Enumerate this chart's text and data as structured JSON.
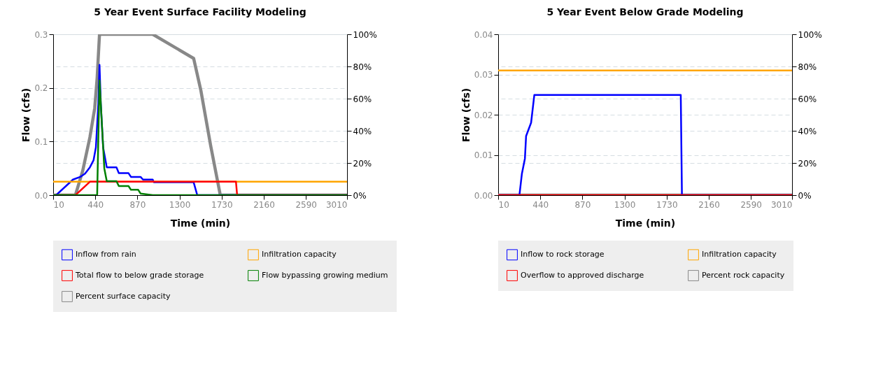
{
  "chart_data": [
    {
      "type": "line",
      "title": "5 Year Event Surface Facility Modeling",
      "xlabel": "Time (min)",
      "ylabel": "Flow (cfs)",
      "xlim": [
        10,
        3010
      ],
      "xticks": [
        10,
        440,
        870,
        1300,
        1730,
        2160,
        2590,
        3010
      ],
      "ylim": [
        0,
        0.3
      ],
      "yticks": [
        {
          "value": 0,
          "label": "0.0"
        },
        0.1,
        0.2,
        0.3
      ],
      "y2lim": [
        0,
        100
      ],
      "y2ticks": [
        {
          "value": 0,
          "label": "0%"
        },
        {
          "value": 20,
          "label": "20%"
        },
        {
          "value": 40,
          "label": "40%"
        },
        {
          "value": 60,
          "label": "60%"
        },
        {
          "value": 80,
          "label": "80%"
        },
        {
          "value": 100,
          "label": "100%"
        }
      ],
      "grid": true,
      "legend": "bottom",
      "series": [
        {
          "name": "Inflow from rain",
          "color": "#0000ff",
          "x": [
            10,
            40,
            212,
            286,
            335,
            385,
            422,
            446,
            471,
            483,
            496,
            520,
            557,
            656,
            680,
            779,
            804,
            902,
            927,
            1026,
            1038,
            1444,
            1481,
            3010
          ],
          "values": [
            0,
            0,
            0.029,
            0.034,
            0.04,
            0.052,
            0.065,
            0.089,
            0.171,
            0.243,
            0.171,
            0.089,
            0.052,
            0.052,
            0.041,
            0.041,
            0.034,
            0.034,
            0.029,
            0.029,
            0.024,
            0.024,
            0,
            0
          ]
        },
        {
          "name": "Infiltration capacity",
          "color": "#ffa500",
          "x": [
            10,
            3010
          ],
          "values": [
            0.025,
            0.025
          ]
        },
        {
          "name": "Total flow to below grade storage",
          "color": "#ff0000",
          "x": [
            10,
            237,
            385,
            1876,
            1888,
            3010
          ],
          "values": [
            0,
            0,
            0.025,
            0.025,
            0,
            0
          ]
        },
        {
          "name": "Flow bypassing growing medium",
          "color": "#008000",
          "x": [
            10,
            459,
            483,
            532,
            557,
            656,
            680,
            779,
            804,
            878,
            902,
            1026,
            3010
          ],
          "values": [
            0,
            0,
            0.214,
            0.05,
            0.026,
            0.026,
            0.017,
            0.017,
            0.01,
            0.01,
            0.003,
            0,
            0
          ]
        },
        {
          "name": "Percent surface capacity",
          "color": "#888888",
          "axis": "y2",
          "x": [
            10,
            237,
            311,
            385,
            434,
            459,
            483,
            1026,
            1444,
            1518,
            1617,
            1716,
            3010
          ],
          "values": [
            0,
            0,
            15,
            36,
            54,
            73,
            100,
            100,
            85,
            65,
            31,
            0,
            0
          ]
        }
      ]
    },
    {
      "type": "line",
      "title": "5 Year Event Below Grade Modeling",
      "xlabel": "Time (min)",
      "ylabel": "Flow (cfs)",
      "xlim": [
        10,
        3010
      ],
      "xticks": [
        10,
        440,
        870,
        1300,
        1730,
        2160,
        2590,
        3010
      ],
      "ylim": [
        0,
        0.04
      ],
      "yticks": [
        {
          "value": 0,
          "label": "0.00"
        },
        0.01,
        0.02,
        0.03,
        0.04
      ],
      "y2lim": [
        0,
        100
      ],
      "y2ticks": [
        {
          "value": 0,
          "label": "0%"
        },
        {
          "value": 20,
          "label": "20%"
        },
        {
          "value": 40,
          "label": "40%"
        },
        {
          "value": 60,
          "label": "60%"
        },
        {
          "value": 80,
          "label": "80%"
        },
        {
          "value": 100,
          "label": "100%"
        }
      ],
      "grid": true,
      "legend": "bottom",
      "series": [
        {
          "name": "Inflow to rock storage",
          "color": "#0000ff",
          "x": [
            10,
            227,
            252,
            283,
            295,
            346,
            379,
            1874,
            1886,
            3010
          ],
          "values": [
            0,
            0,
            0.0053,
            0.0091,
            0.0147,
            0.018,
            0.0249,
            0.0249,
            0,
            0
          ]
        },
        {
          "name": "Infiltration capacity",
          "color": "#ffa500",
          "x": [
            10,
            3010
          ],
          "values": [
            0.031,
            0.031
          ]
        },
        {
          "name": "Overflow to approved discharge",
          "color": "#ff0000",
          "x": [
            10,
            3010
          ],
          "values": [
            0,
            0
          ]
        },
        {
          "name": "Percent rock capacity",
          "color": "#888888",
          "axis": "y2",
          "x": [
            10,
            3010
          ],
          "values": [
            0,
            0
          ]
        }
      ]
    }
  ]
}
